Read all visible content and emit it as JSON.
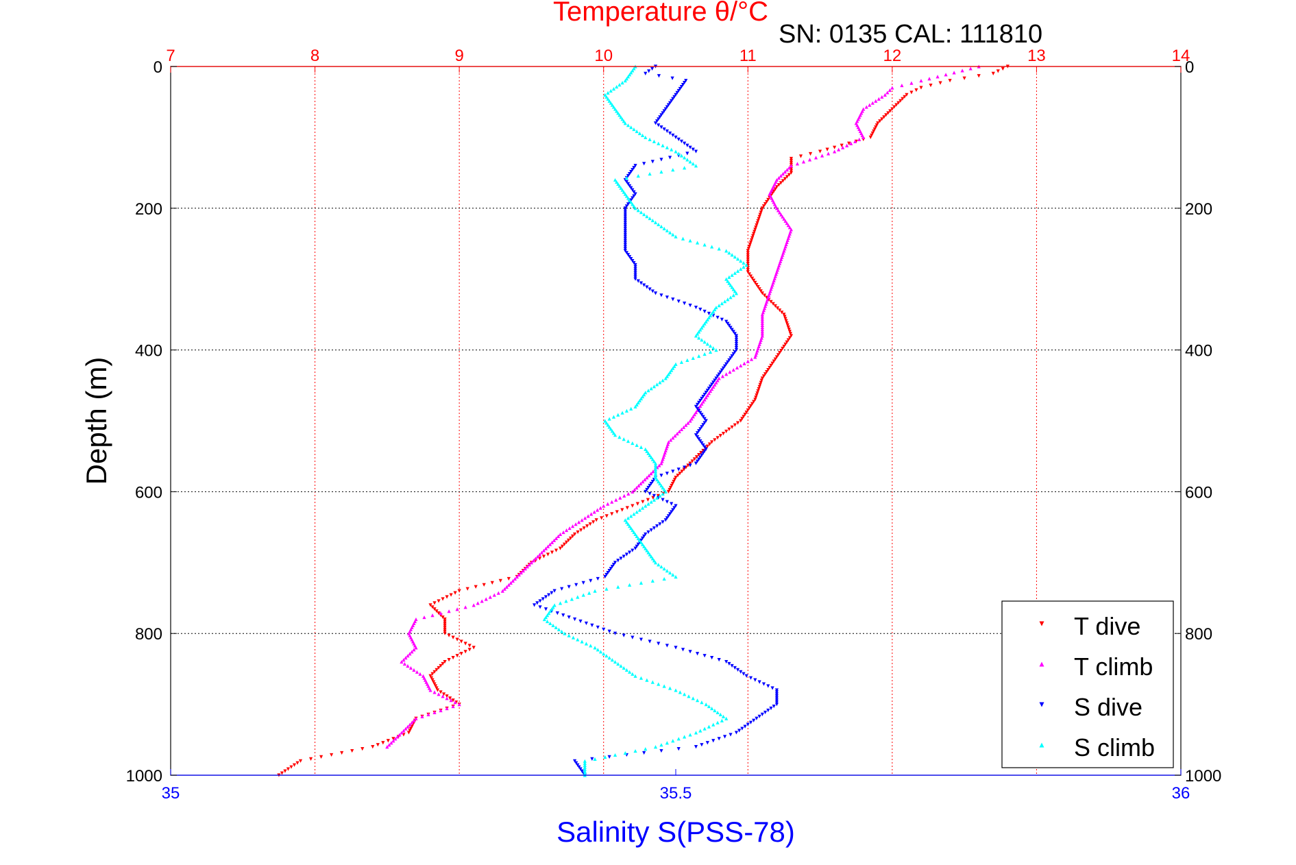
{
  "chart_data": {
    "type": "scatter",
    "title": "Temperature θ/°C",
    "subtitle": "SN: 0135  CAL: 111810",
    "ylabel": "Depth (m)",
    "xlabel_bottom": "Salinity S(PSS-78)",
    "x_top": {
      "label": "Temperature θ/°C",
      "range": [
        7,
        14
      ],
      "ticks": [
        "7",
        "8",
        "9",
        "10",
        "11",
        "12",
        "13",
        "14"
      ]
    },
    "x_bottom": {
      "label": "Salinity S(PSS-78)",
      "range": [
        35,
        36
      ],
      "ticks": [
        "35",
        "35.5",
        "36"
      ]
    },
    "y": {
      "range": [
        0,
        1000
      ],
      "inverted": true,
      "ticks": [
        "0",
        "200",
        "400",
        "600",
        "800",
        "1000"
      ]
    },
    "legend": {
      "position": "bottom-right",
      "entries": [
        "T dive",
        "T climb",
        "S dive",
        "S climb"
      ]
    },
    "colors": {
      "T dive": "#ff0000",
      "T climb": "#ff00ff",
      "S dive": "#0000ff",
      "S climb": "#00ffff",
      "top_axis": "#ff0000",
      "bottom_axis": "#0000ff"
    },
    "series": [
      {
        "name": "T dive",
        "axis": "temperature",
        "marker": "triangle-down",
        "depth": [
          0,
          10,
          20,
          30,
          40,
          60,
          80,
          100,
          120,
          130,
          150,
          170,
          200,
          230,
          260,
          290,
          320,
          350,
          380,
          410,
          440,
          470,
          500,
          530,
          560,
          580,
          600,
          620,
          640,
          660,
          680,
          700,
          720,
          740,
          760,
          780,
          800,
          820,
          840,
          860,
          880,
          900,
          920,
          940,
          960,
          980,
          1000
        ],
        "values": [
          12.8,
          12.7,
          12.4,
          12.2,
          12.1,
          12.0,
          11.9,
          11.85,
          11.5,
          11.3,
          11.3,
          11.2,
          11.1,
          11.05,
          11.0,
          11.0,
          11.1,
          11.25,
          11.3,
          11.2,
          11.1,
          11.05,
          10.95,
          10.75,
          10.6,
          10.5,
          10.45,
          10.2,
          9.95,
          9.8,
          9.7,
          9.5,
          9.4,
          9.0,
          8.8,
          8.9,
          8.9,
          9.1,
          8.9,
          8.8,
          8.85,
          9.0,
          8.7,
          8.65,
          8.4,
          7.9,
          7.75
        ]
      },
      {
        "name": "T climb",
        "axis": "temperature",
        "marker": "triangle-up",
        "depth": [
          0,
          20,
          30,
          40,
          60,
          80,
          100,
          120,
          140,
          160,
          180,
          200,
          230,
          260,
          290,
          320,
          350,
          380,
          410,
          440,
          470,
          500,
          530,
          560,
          580,
          600,
          620,
          640,
          660,
          680,
          700,
          720,
          740,
          760,
          780,
          800,
          820,
          840,
          860,
          880,
          900,
          920,
          940,
          960
        ],
        "values": [
          12.6,
          12.2,
          12.0,
          11.95,
          11.8,
          11.75,
          11.8,
          11.6,
          11.3,
          11.2,
          11.15,
          11.2,
          11.3,
          11.25,
          11.2,
          11.15,
          11.1,
          11.1,
          11.05,
          10.8,
          10.7,
          10.6,
          10.45,
          10.4,
          10.3,
          10.2,
          10.0,
          9.85,
          9.7,
          9.6,
          9.5,
          9.4,
          9.3,
          9.1,
          8.7,
          8.65,
          8.7,
          8.6,
          8.75,
          8.8,
          9.0,
          8.7,
          8.6,
          8.5
        ]
      },
      {
        "name": "S dive",
        "axis": "salinity",
        "marker": "triangle-down",
        "depth": [
          0,
          10,
          20,
          40,
          60,
          80,
          100,
          120,
          140,
          160,
          180,
          200,
          220,
          240,
          260,
          280,
          300,
          320,
          340,
          360,
          380,
          400,
          420,
          440,
          460,
          480,
          500,
          520,
          540,
          560,
          580,
          600,
          620,
          640,
          660,
          680,
          700,
          720,
          740,
          760,
          780,
          800,
          820,
          840,
          860,
          880,
          900,
          920,
          940,
          960,
          980,
          1000
        ],
        "values": [
          35.48,
          35.47,
          35.51,
          35.5,
          35.49,
          35.48,
          35.5,
          35.52,
          35.46,
          35.45,
          35.46,
          35.45,
          35.45,
          35.45,
          35.45,
          35.46,
          35.46,
          35.48,
          35.52,
          35.55,
          35.56,
          35.56,
          35.55,
          35.54,
          35.53,
          35.52,
          35.53,
          35.52,
          35.53,
          35.52,
          35.48,
          35.47,
          35.5,
          35.49,
          35.47,
          35.46,
          35.44,
          35.43,
          35.38,
          35.36,
          35.4,
          35.44,
          35.5,
          35.55,
          35.57,
          35.6,
          35.6,
          35.58,
          35.56,
          35.52,
          35.4,
          35.41
        ]
      },
      {
        "name": "S climb",
        "axis": "salinity",
        "marker": "triangle-up",
        "depth": [
          0,
          20,
          40,
          60,
          80,
          100,
          120,
          140,
          160,
          180,
          200,
          220,
          240,
          260,
          280,
          300,
          320,
          340,
          360,
          380,
          400,
          420,
          440,
          460,
          480,
          500,
          520,
          540,
          560,
          580,
          600,
          620,
          640,
          660,
          680,
          700,
          720,
          740,
          760,
          780,
          800,
          820,
          840,
          860,
          880,
          900,
          920,
          940,
          960,
          980,
          1000
        ],
        "values": [
          35.46,
          35.45,
          35.43,
          35.44,
          35.45,
          35.47,
          35.5,
          35.52,
          35.44,
          35.45,
          35.46,
          35.48,
          35.5,
          35.55,
          35.57,
          35.55,
          35.56,
          35.54,
          35.53,
          35.52,
          35.54,
          35.5,
          35.49,
          35.47,
          35.46,
          35.43,
          35.44,
          35.47,
          35.48,
          35.48,
          35.49,
          35.47,
          35.45,
          35.46,
          35.47,
          35.48,
          35.5,
          35.42,
          35.38,
          35.37,
          35.39,
          35.42,
          35.44,
          35.46,
          35.5,
          35.53,
          35.55,
          35.52,
          35.48,
          35.41,
          35.41
        ]
      }
    ]
  }
}
